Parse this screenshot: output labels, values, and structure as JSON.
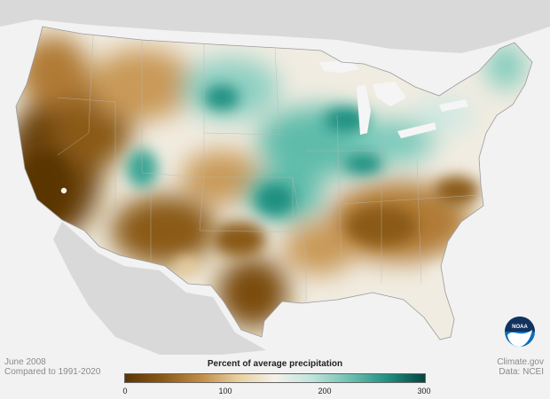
{
  "map": {
    "title": "",
    "period": "June 2008",
    "baseline": "Compared to 1991-2020",
    "credit_site": "Climate.gov",
    "credit_data": "Data: NCEI",
    "logo_text": "NOAA"
  },
  "legend": {
    "title": "Percent of average precipitation",
    "ticks": [
      "0",
      "100",
      "200",
      "300"
    ],
    "colors": [
      "#5a3505",
      "#8a5a15",
      "#c08a45",
      "#e8cf9e",
      "#f4f1ea",
      "#bfe3dc",
      "#6cc0b0",
      "#1f8f80",
      "#05453e"
    ]
  },
  "colors": {
    "very_dry": "#6b4307",
    "dry": "#b07a35",
    "near_normal": "#f1ece1",
    "wet": "#5fbcaa",
    "very_wet": "#11756a",
    "land_outside": "#d9d9d9",
    "water": "#f5f5f5"
  }
}
